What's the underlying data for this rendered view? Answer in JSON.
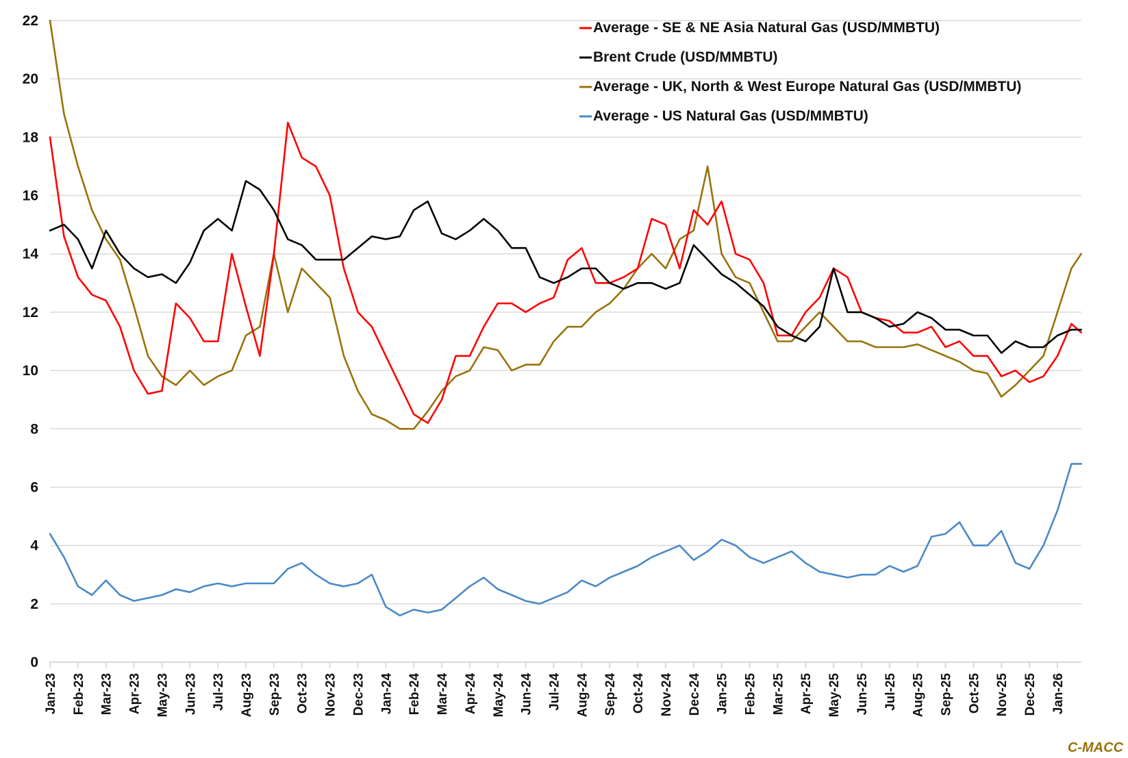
{
  "chart_data": {
    "type": "line",
    "title": "",
    "xlabel": "",
    "ylabel": "",
    "ylim": [
      0,
      22
    ],
    "yticks": [
      0,
      2,
      4,
      6,
      8,
      10,
      12,
      14,
      16,
      18,
      20,
      22
    ],
    "grid": true,
    "legend_position": "top-right",
    "x_tick_labels": [
      "Jan-23",
      "Feb-23",
      "Mar-23",
      "Apr-23",
      "May-23",
      "Jun-23",
      "Jul-23",
      "Aug-23",
      "Sep-23",
      "Oct-23",
      "Nov-23",
      "Dec-23",
      "Jan-24",
      "Feb-24",
      "Mar-24",
      "Apr-24",
      "May-24",
      "Jun-24",
      "Jul-24",
      "Aug-24",
      "Sep-24",
      "Oct-24",
      "Nov-24",
      "Dec-24",
      "Jan-25",
      "Feb-25",
      "Mar-25",
      "Apr-25",
      "May-25",
      "Jun-25",
      "Jul-25",
      "Aug-25",
      "Sep-25",
      "Oct-25",
      "Nov-25",
      "Dec-25",
      "Jan-26"
    ],
    "x_unit": "months since Jan-23 (semi-monthly samples)",
    "x": [
      0,
      0.5,
      1,
      1.5,
      2,
      2.5,
      3,
      3.5,
      4,
      4.5,
      5,
      5.5,
      6,
      6.5,
      7,
      7.5,
      8,
      8.5,
      9,
      9.5,
      10,
      10.5,
      11,
      11.5,
      12,
      12.5,
      13,
      13.5,
      14,
      14.5,
      15,
      15.5,
      16,
      16.5,
      17,
      17.5,
      18,
      18.5,
      19,
      19.5,
      20,
      20.5,
      21,
      21.5,
      22,
      22.5,
      23,
      23.5,
      24,
      24.5,
      25,
      25.5,
      26,
      26.5,
      27,
      27.5,
      28,
      28.5,
      29,
      29.5,
      30,
      30.5,
      31,
      31.5,
      32,
      32.5,
      33,
      33.5,
      34,
      34.5,
      35,
      35.5,
      36,
      36.5,
      36.85
    ],
    "series": [
      {
        "name": "Average - SE & NE Asia Natural Gas (USD/MMBTU)",
        "color": "#FF0000",
        "values": [
          18.0,
          14.6,
          13.2,
          12.6,
          12.4,
          11.5,
          10.0,
          9.2,
          9.3,
          12.3,
          11.8,
          11.0,
          11.0,
          14.0,
          12.2,
          10.5,
          14.0,
          18.5,
          17.3,
          17.0,
          16.0,
          13.5,
          12.0,
          11.5,
          10.5,
          9.5,
          8.5,
          8.2,
          9.0,
          10.5,
          10.5,
          11.5,
          12.3,
          12.3,
          12.0,
          12.3,
          12.5,
          13.8,
          14.2,
          13.0,
          13.0,
          13.2,
          13.5,
          15.2,
          15.0,
          13.5,
          15.5,
          15.0,
          15.8,
          14.0,
          13.8,
          13.0,
          11.2,
          11.2,
          12.0,
          12.5,
          13.5,
          13.2,
          12.0,
          11.8,
          11.7,
          11.3,
          11.3,
          11.5,
          10.8,
          11.0,
          10.5,
          10.5,
          9.8,
          10.0,
          9.6,
          9.8,
          10.5,
          11.6,
          11.3
        ]
      },
      {
        "name": "Brent Crude (USD/MMBTU)",
        "color": "#000000",
        "values": [
          14.8,
          15.0,
          14.5,
          13.5,
          14.8,
          14.0,
          13.5,
          13.2,
          13.3,
          13.0,
          13.7,
          14.8,
          15.2,
          14.8,
          16.5,
          16.2,
          15.5,
          14.5,
          14.3,
          13.8,
          13.8,
          13.8,
          14.2,
          14.6,
          14.5,
          14.6,
          15.5,
          15.8,
          14.7,
          14.5,
          14.8,
          15.2,
          14.8,
          14.2,
          14.2,
          13.2,
          13.0,
          13.2,
          13.5,
          13.5,
          13.0,
          12.8,
          13.0,
          13.0,
          12.8,
          13.0,
          14.3,
          13.8,
          13.3,
          13.0,
          12.6,
          12.2,
          11.5,
          11.2,
          11.0,
          11.5,
          13.5,
          12.0,
          12.0,
          11.8,
          11.5,
          11.6,
          12.0,
          11.8,
          11.4,
          11.4,
          11.2,
          11.2,
          10.6,
          11.0,
          10.8,
          10.8,
          11.2,
          11.4,
          11.4
        ]
      },
      {
        "name": "Average - UK, North & West Europe Natural Gas (USD/MMBTU)",
        "color": "#98720A",
        "values": [
          22.0,
          18.8,
          17.0,
          15.5,
          14.5,
          13.8,
          12.2,
          10.5,
          9.8,
          9.5,
          10.0,
          9.5,
          9.8,
          10.0,
          11.2,
          11.5,
          14.0,
          12.0,
          13.5,
          13.0,
          12.5,
          10.5,
          9.3,
          8.5,
          8.3,
          8.0,
          8.0,
          8.6,
          9.3,
          9.8,
          10.0,
          10.8,
          10.7,
          10.0,
          10.2,
          10.2,
          11.0,
          11.5,
          11.5,
          12.0,
          12.3,
          12.8,
          13.5,
          14.0,
          13.5,
          14.5,
          14.8,
          17.0,
          14.0,
          13.2,
          13.0,
          12.0,
          11.0,
          11.0,
          11.5,
          12.0,
          11.5,
          11.0,
          11.0,
          10.8,
          10.8,
          10.8,
          10.9,
          10.7,
          10.5,
          10.3,
          10.0,
          9.9,
          9.1,
          9.5,
          10.0,
          10.5,
          12.0,
          13.5,
          14.0
        ]
      },
      {
        "name": "Average - US Natural Gas (USD/MMBTU)",
        "color": "#4A89C8",
        "values": [
          4.4,
          3.6,
          2.6,
          2.3,
          2.8,
          2.3,
          2.1,
          2.2,
          2.3,
          2.5,
          2.4,
          2.6,
          2.7,
          2.6,
          2.7,
          2.7,
          2.7,
          3.2,
          3.4,
          3.0,
          2.7,
          2.6,
          2.7,
          3.0,
          1.9,
          1.6,
          1.8,
          1.7,
          1.8,
          2.2,
          2.6,
          2.9,
          2.5,
          2.3,
          2.1,
          2.0,
          2.2,
          2.4,
          2.8,
          2.6,
          2.9,
          3.1,
          3.3,
          3.6,
          3.8,
          4.0,
          3.5,
          3.8,
          4.2,
          4.0,
          3.6,
          3.4,
          3.6,
          3.8,
          3.4,
          3.1,
          3.0,
          2.9,
          3.0,
          3.0,
          3.3,
          3.1,
          3.3,
          4.3,
          4.4,
          4.8,
          4.0,
          4.0,
          4.5,
          3.4,
          3.2,
          4.0,
          5.2,
          6.8,
          6.8
        ]
      }
    ]
  },
  "credit": {
    "text": "C-MACC",
    "color": "#98720A"
  }
}
